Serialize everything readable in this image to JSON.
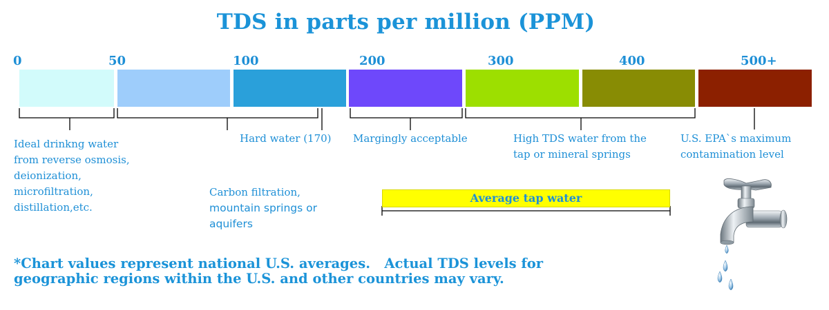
{
  "title": "TDS in parts per million (PPM)",
  "ticks": [
    "0",
    "50",
    "100",
    "200",
    "300",
    "400",
    "500+"
  ],
  "segments": [
    {
      "color": "#d2fbfb"
    },
    {
      "color": "#9ecdfb"
    },
    {
      "color": "#2aa0da"
    },
    {
      "color": "#6e48fb"
    },
    {
      "color": "#9ddf00"
    },
    {
      "color": "#888c04"
    },
    {
      "color": "#8c2000"
    }
  ],
  "labels": {
    "ideal": [
      "Ideal drinkng water",
      "from reverse osmosis,",
      "deionization,",
      "microfiltration,",
      "distillation,etc."
    ],
    "carbon": [
      "Carbon filtration,",
      "mountain springs or",
      "aquifers"
    ],
    "hard": "Hard water (170)",
    "marginal": "Margingly acceptable",
    "high_tds": [
      "High TDS water from the",
      "tap or mineral springs"
    ],
    "epa": [
      "U.S. EPA`s maximum",
      "contamination level"
    ]
  },
  "average_tap": "Average tap water",
  "note": [
    "*Chart values represent national U.S. averages.   Actual TDS levels for",
    "geographic regions within the U.S. and other countries may vary."
  ],
  "faucet_icon": "faucet-icon"
}
